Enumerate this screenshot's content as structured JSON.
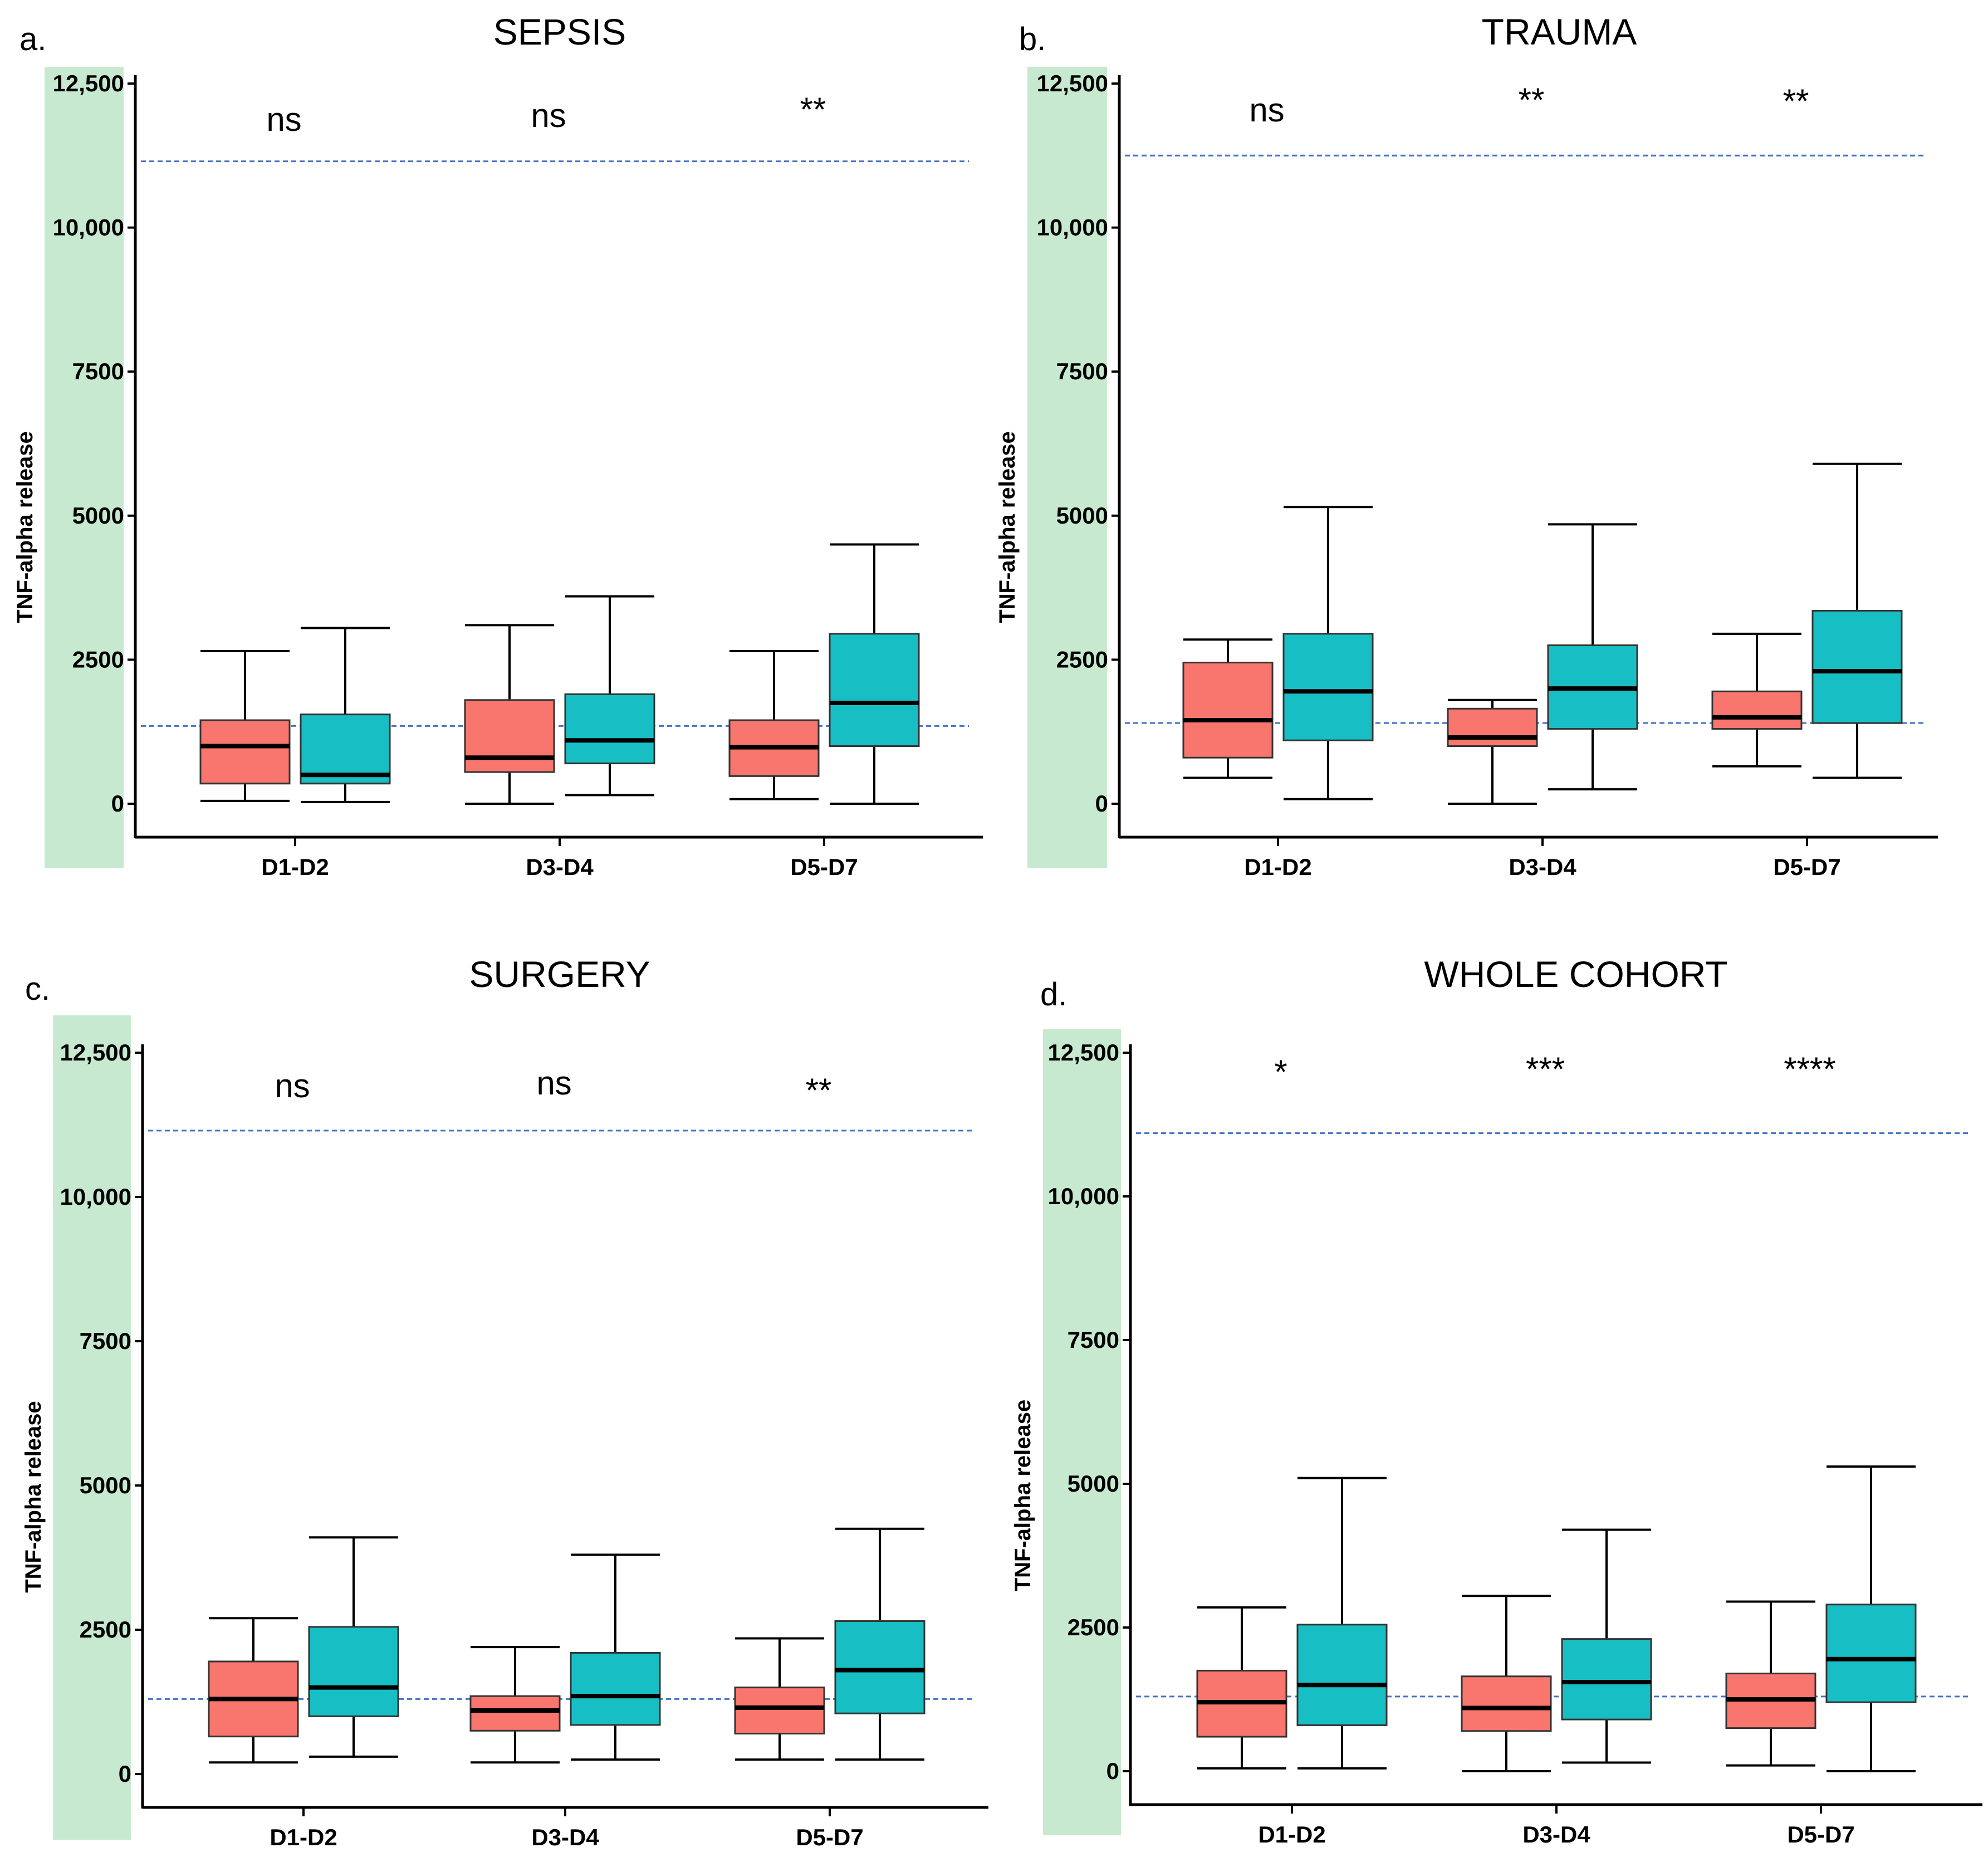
{
  "colors": {
    "group_a": "#f8766d",
    "group_b": "#17bfc4",
    "highlight": "#c7e9cf",
    "ref_line": "#4472c4",
    "axis": "#000000"
  },
  "chart_data": [
    {
      "type": "boxplot",
      "panel": "a.",
      "title": "SEPSIS",
      "ylabel": "TNF-alpha release",
      "ylim": [
        0,
        12500
      ],
      "yticks": [
        0,
        2500,
        5000,
        7500,
        10000,
        12500
      ],
      "ytick_labels": [
        "0",
        "2500",
        "5000",
        "7500",
        "10,000",
        "12,500"
      ],
      "categories": [
        "D1-D2",
        "D3-D4",
        "D5-D7"
      ],
      "significance": [
        "ns",
        "ns",
        "**"
      ],
      "ref_lines": [
        11150,
        1350
      ],
      "series": [
        {
          "name": "group_a",
          "boxes": [
            {
              "min": 50,
              "q1": 350,
              "median": 1000,
              "q3": 1450,
              "max": 2650
            },
            {
              "min": 0,
              "q1": 550,
              "median": 800,
              "q3": 1800,
              "max": 3100
            },
            {
              "min": 80,
              "q1": 480,
              "median": 980,
              "q3": 1450,
              "max": 2650
            }
          ]
        },
        {
          "name": "group_b",
          "boxes": [
            {
              "min": 30,
              "q1": 350,
              "median": 500,
              "q3": 1550,
              "max": 3050
            },
            {
              "min": 150,
              "q1": 700,
              "median": 1100,
              "q3": 1900,
              "max": 3600
            },
            {
              "min": 0,
              "q1": 1000,
              "median": 1750,
              "q3": 2950,
              "max": 4500
            }
          ]
        }
      ]
    },
    {
      "type": "boxplot",
      "panel": "b.",
      "title": "TRAUMA",
      "ylabel": "TNF-alpha release",
      "ylim": [
        0,
        12500
      ],
      "yticks": [
        0,
        2500,
        5000,
        7500,
        10000,
        12500
      ],
      "ytick_labels": [
        "0",
        "2500",
        "5000",
        "7500",
        "10,000",
        "12,500"
      ],
      "categories": [
        "D1-D2",
        "D3-D4",
        "D5-D7"
      ],
      "significance": [
        "ns",
        "**",
        "**"
      ],
      "ref_lines": [
        11250,
        1400
      ],
      "series": [
        {
          "name": "group_a",
          "boxes": [
            {
              "min": 450,
              "q1": 800,
              "median": 1450,
              "q3": 2450,
              "max": 2850
            },
            {
              "min": 0,
              "q1": 1000,
              "median": 1150,
              "q3": 1650,
              "max": 1800
            },
            {
              "min": 650,
              "q1": 1300,
              "median": 1500,
              "q3": 1950,
              "max": 2950
            }
          ]
        },
        {
          "name": "group_b",
          "boxes": [
            {
              "min": 80,
              "q1": 1100,
              "median": 1950,
              "q3": 2950,
              "max": 5150
            },
            {
              "min": 250,
              "q1": 1300,
              "median": 2000,
              "q3": 2750,
              "max": 4850
            },
            {
              "min": 450,
              "q1": 1400,
              "median": 2300,
              "q3": 3350,
              "max": 5900
            }
          ]
        }
      ]
    },
    {
      "type": "boxplot",
      "panel": "c.",
      "title": "SURGERY",
      "ylabel": "TNF-alpha release",
      "ylim": [
        0,
        12500
      ],
      "yticks": [
        0,
        2500,
        5000,
        7500,
        10000,
        12500
      ],
      "ytick_labels": [
        "0",
        "2500",
        "5000",
        "7500",
        "10,000",
        "12,500"
      ],
      "categories": [
        "D1-D2",
        "D3-D4",
        "D5-D7"
      ],
      "significance": [
        "ns",
        "ns",
        "**"
      ],
      "ref_lines": [
        11150,
        1300
      ],
      "series": [
        {
          "name": "group_a",
          "boxes": [
            {
              "min": 200,
              "q1": 650,
              "median": 1300,
              "q3": 1950,
              "max": 2700
            },
            {
              "min": 200,
              "q1": 750,
              "median": 1100,
              "q3": 1350,
              "max": 2200
            },
            {
              "min": 250,
              "q1": 700,
              "median": 1150,
              "q3": 1500,
              "max": 2350
            }
          ]
        },
        {
          "name": "group_b",
          "boxes": [
            {
              "min": 300,
              "q1": 1000,
              "median": 1500,
              "q3": 2550,
              "max": 4100
            },
            {
              "min": 250,
              "q1": 850,
              "median": 1350,
              "q3": 2100,
              "max": 3800
            },
            {
              "min": 250,
              "q1": 1050,
              "median": 1800,
              "q3": 2650,
              "max": 4250
            }
          ]
        }
      ]
    },
    {
      "type": "boxplot",
      "panel": "d.",
      "title": "WHOLE COHORT",
      "ylabel": "TNF-alpha release",
      "ylim": [
        0,
        12500
      ],
      "yticks": [
        0,
        2500,
        5000,
        7500,
        10000,
        12500
      ],
      "ytick_labels": [
        "0",
        "2500",
        "5000",
        "7500",
        "10,000",
        "12,500"
      ],
      "categories": [
        "D1-D2",
        "D3-D4",
        "D5-D7"
      ],
      "significance": [
        "*",
        "***",
        "****"
      ],
      "ref_lines": [
        11100,
        1300
      ],
      "series": [
        {
          "name": "group_a",
          "boxes": [
            {
              "min": 50,
              "q1": 600,
              "median": 1200,
              "q3": 1750,
              "max": 2850
            },
            {
              "min": 0,
              "q1": 700,
              "median": 1100,
              "q3": 1650,
              "max": 3050
            },
            {
              "min": 100,
              "q1": 750,
              "median": 1250,
              "q3": 1700,
              "max": 2950
            }
          ]
        },
        {
          "name": "group_b",
          "boxes": [
            {
              "min": 50,
              "q1": 800,
              "median": 1500,
              "q3": 2550,
              "max": 5100
            },
            {
              "min": 150,
              "q1": 900,
              "median": 1550,
              "q3": 2300,
              "max": 4200
            },
            {
              "min": 0,
              "q1": 1200,
              "median": 1950,
              "q3": 2900,
              "max": 5300
            }
          ]
        }
      ]
    }
  ]
}
